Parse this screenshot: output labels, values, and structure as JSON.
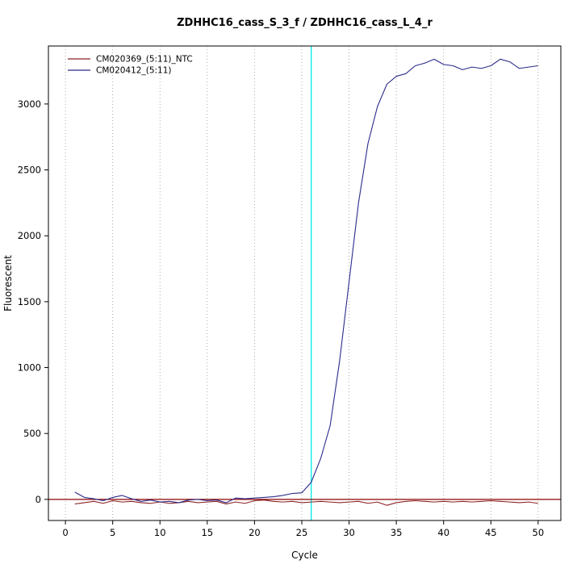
{
  "title": "ZDHHC16_cass_S_3_f / ZDHHC16_cass_L_4_r",
  "colors": {
    "background": "#ffffff",
    "axis": "#000000",
    "grid": "#999999",
    "ntc_series": "#8b2323",
    "sample_series": "#2b2b8c",
    "threshold": "#8b0000",
    "marker": "#00e8e8"
  },
  "chart_data": {
    "type": "line",
    "title": "ZDHHC16_cass_S_3_f / ZDHHC16_cass_L_4_r",
    "xlabel": "Cycle",
    "ylabel": "Fluorescent",
    "xlim": [
      -1.8,
      52.4
    ],
    "ylim": [
      -160,
      3440
    ],
    "xticks": [
      0,
      5,
      10,
      15,
      20,
      25,
      30,
      35,
      40,
      45,
      50
    ],
    "yticks": [
      0,
      500,
      1000,
      1500,
      2000,
      2500,
      3000
    ],
    "grid": "vertical-dotted",
    "legend_position": "top-left",
    "threshold_line": {
      "y": 0,
      "color": "#8b0000"
    },
    "marker_line": {
      "x": 26,
      "color": "#00e8e8"
    },
    "cycles": [
      1,
      2,
      3,
      4,
      5,
      6,
      7,
      8,
      9,
      10,
      11,
      12,
      13,
      14,
      15,
      16,
      17,
      18,
      19,
      20,
      21,
      22,
      23,
      24,
      25,
      26,
      27,
      28,
      29,
      30,
      31,
      32,
      33,
      34,
      35,
      36,
      37,
      38,
      39,
      40,
      41,
      42,
      43,
      44,
      45,
      46,
      47,
      48,
      49,
      50
    ],
    "series": [
      {
        "name": "CM020369_(5:11)_NTC",
        "color": "#8b2323",
        "values": [
          -35,
          -25,
          -15,
          -30,
          -10,
          -20,
          -15,
          -25,
          -30,
          -20,
          -30,
          -25,
          -15,
          -25,
          -20,
          -15,
          -35,
          -20,
          -30,
          -10,
          -5,
          -15,
          -20,
          -15,
          -25,
          -20,
          -15,
          -20,
          -25,
          -20,
          -15,
          -30,
          -20,
          -45,
          -25,
          -15,
          -10,
          -15,
          -20,
          -15,
          -20,
          -15,
          -20,
          -15,
          -10,
          -15,
          -20,
          -25,
          -20,
          -30
        ]
      },
      {
        "name": "CM020412_(5:11)",
        "color": "#2b2b8c",
        "values": [
          55,
          15,
          5,
          -10,
          15,
          30,
          5,
          -15,
          -5,
          -20,
          -15,
          -25,
          -5,
          0,
          -10,
          -5,
          -25,
          10,
          5,
          10,
          15,
          20,
          30,
          45,
          50,
          130,
          310,
          560,
          1050,
          1650,
          2250,
          2700,
          2980,
          3150,
          3210,
          3230,
          3290,
          3310,
          3340,
          3300,
          3290,
          3260,
          3280,
          3270,
          3290,
          3340,
          3320,
          3270,
          3280,
          3290
        ]
      }
    ]
  }
}
